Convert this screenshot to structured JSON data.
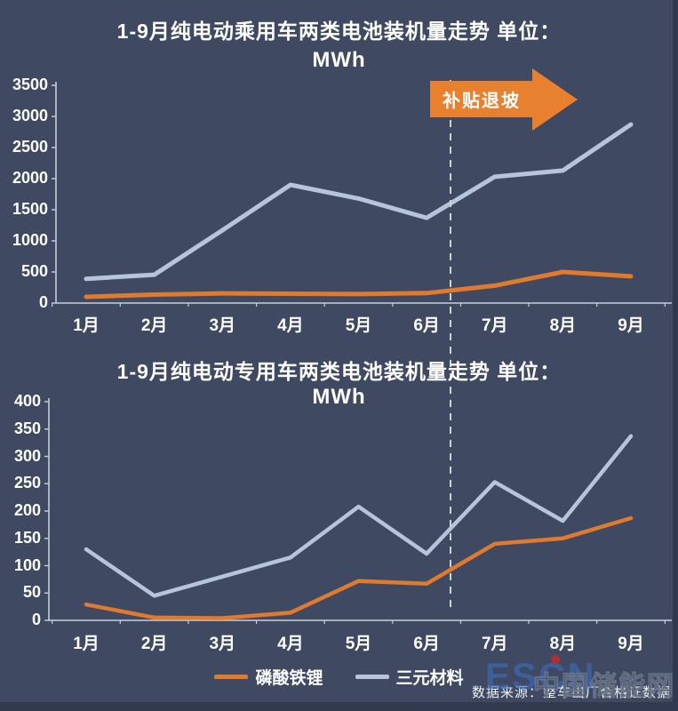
{
  "page": {
    "background_color": "#3f4a62",
    "bottom_band_color": "#313a4e",
    "right_band_color": "#2f384c",
    "axis_color": "#c7cfdc",
    "text_color": "#ffffff"
  },
  "chart_data": [
    {
      "type": "line",
      "title_line1": "1-9月纯电动乘用车两类电池装机量走势  单位：",
      "title_line2": "MWh",
      "categories": [
        "1月",
        "2月",
        "3月",
        "4月",
        "5月",
        "6月",
        "7月",
        "8月",
        "9月"
      ],
      "y_ticks": [
        0,
        500,
        1000,
        1500,
        2000,
        2500,
        3000,
        3500
      ],
      "ylim": [
        0,
        3500
      ],
      "grid": false,
      "legend_position": "shared-bottom",
      "series": [
        {
          "name": "磷酸铁锂",
          "color": "#df7a2e",
          "values": [
            100,
            135,
            155,
            150,
            145,
            160,
            280,
            500,
            430
          ]
        },
        {
          "name": "三元材料",
          "color": "#b7c5db",
          "values": [
            390,
            455,
            1170,
            1900,
            1680,
            1370,
            2030,
            2130,
            2870
          ]
        }
      ]
    },
    {
      "type": "line",
      "title_line1": "1-9月纯电动专用车两类电池装机量走势  单位：",
      "title_line2": "MWh",
      "categories": [
        "1月",
        "2月",
        "3月",
        "4月",
        "5月",
        "6月",
        "7月",
        "8月",
        "9月"
      ],
      "y_ticks": [
        0,
        50,
        100,
        150,
        200,
        250,
        300,
        350,
        400
      ],
      "ylim": [
        0,
        400
      ],
      "grid": false,
      "legend_position": "shared-bottom",
      "series": [
        {
          "name": "磷酸铁锂",
          "color": "#df7a2e",
          "values": [
            29,
            5,
            4,
            14,
            72,
            67,
            140,
            150,
            187
          ]
        },
        {
          "name": "三元材料",
          "color": "#b7c5db",
          "values": [
            130,
            45,
            80,
            115,
            208,
            122,
            253,
            182,
            337
          ]
        }
      ]
    }
  ],
  "annotation": {
    "arrow_label": "补贴退坡",
    "arrow_color": "#e8812f",
    "dashed_line": {
      "color": "#ccd6c6",
      "between": [
        "6月",
        "7月"
      ]
    }
  },
  "legend": {
    "items": [
      {
        "label": "磷酸铁锂",
        "color": "#df7a2e"
      },
      {
        "label": "三元材料",
        "color": "#b7c5db"
      }
    ]
  },
  "footer": {
    "source_text": "数据来源：整车出厂合格证数据",
    "watermark": {
      "latin": "ESCN",
      "cn": "中国储能网"
    }
  }
}
